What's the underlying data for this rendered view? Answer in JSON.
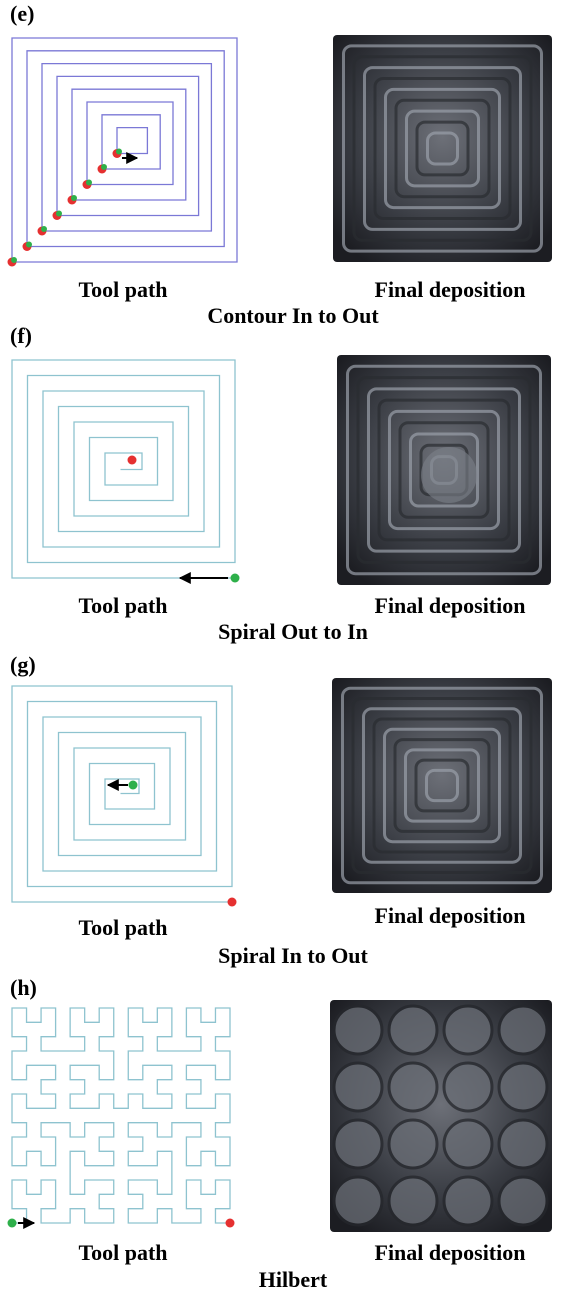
{
  "panels": [
    {
      "label": "(e)",
      "left_caption": "Tool path",
      "right_caption": "Final deposition",
      "title": "Contour In to Out"
    },
    {
      "label": "(f)",
      "left_caption": "Tool path",
      "right_caption": "Final deposition",
      "title": "Spiral Out to In"
    },
    {
      "label": "(g)",
      "left_caption": "Tool path",
      "right_caption": "Final deposition",
      "title": "Spiral In to Out"
    },
    {
      "label": "(h)",
      "left_caption": "Tool path",
      "right_caption": "Final deposition",
      "title": "Hilbert"
    }
  ]
}
